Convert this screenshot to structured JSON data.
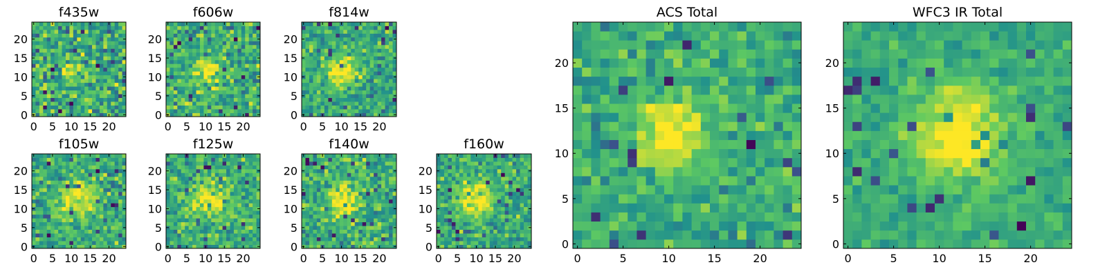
{
  "colormap": [
    "#440154",
    "#3b528b",
    "#21918c",
    "#5ec962",
    "#fde725"
  ],
  "chart_data": [
    {
      "type": "heatmap",
      "title": "f435w",
      "grid_size": 25,
      "xlim": [
        -0.5,
        24.5
      ],
      "ylim": [
        -0.5,
        24.5
      ],
      "xticks": [
        0,
        5,
        10,
        15,
        20
      ],
      "yticks": [
        0,
        5,
        10,
        15,
        20
      ],
      "source_center": [
        9.5,
        11.5
      ],
      "source_sigma": 2.3,
      "source_strength": 0.25,
      "noise_level": 0.45,
      "grid": false
    },
    {
      "type": "heatmap",
      "title": "f606w",
      "grid_size": 25,
      "xlim": [
        -0.5,
        24.5
      ],
      "ylim": [
        -0.5,
        24.5
      ],
      "xticks": [
        0,
        5,
        10,
        15,
        20
      ],
      "yticks": [
        0,
        5,
        10,
        15,
        20
      ],
      "source_center": [
        10,
        11.5
      ],
      "source_sigma": 2.6,
      "source_strength": 0.35,
      "noise_level": 0.4,
      "grid": false
    },
    {
      "type": "heatmap",
      "title": "f814w",
      "grid_size": 25,
      "xlim": [
        -0.5,
        24.5
      ],
      "ylim": [
        -0.5,
        24.5
      ],
      "xticks": [
        0,
        5,
        10,
        15,
        20
      ],
      "yticks": [
        0,
        5,
        10,
        15,
        20
      ],
      "source_center": [
        10,
        11.5
      ],
      "source_sigma": 2.6,
      "source_strength": 0.45,
      "noise_level": 0.35,
      "grid": false
    },
    {
      "type": "heatmap",
      "title": "f105w",
      "grid_size": 25,
      "xlim": [
        -0.5,
        24.5
      ],
      "ylim": [
        -0.5,
        24.5
      ],
      "xticks": [
        0,
        5,
        10,
        15,
        20
      ],
      "yticks": [
        0,
        5,
        10,
        15,
        20
      ],
      "source_center": [
        11.5,
        12.5
      ],
      "source_sigma": 3.5,
      "source_strength": 0.4,
      "noise_level": 0.35,
      "grid": false
    },
    {
      "type": "heatmap",
      "title": "f125w",
      "grid_size": 25,
      "xlim": [
        -0.5,
        24.5
      ],
      "ylim": [
        -0.5,
        24.5
      ],
      "xticks": [
        0,
        5,
        10,
        15,
        20
      ],
      "yticks": [
        0,
        5,
        10,
        15,
        20
      ],
      "source_center": [
        11,
        12.5
      ],
      "source_sigma": 3.5,
      "source_strength": 0.4,
      "noise_level": 0.35,
      "grid": false
    },
    {
      "type": "heatmap",
      "title": "f140w",
      "grid_size": 25,
      "xlim": [
        -0.5,
        24.5
      ],
      "ylim": [
        -0.5,
        24.5
      ],
      "xticks": [
        0,
        5,
        10,
        15,
        20
      ],
      "yticks": [
        0,
        5,
        10,
        15,
        20
      ],
      "source_center": [
        10.5,
        12
      ],
      "source_sigma": 3.0,
      "source_strength": 0.4,
      "noise_level": 0.38,
      "grid": false
    },
    {
      "type": "heatmap",
      "title": "f160w",
      "grid_size": 25,
      "xlim": [
        -0.5,
        24.5
      ],
      "ylim": [
        -0.5,
        24.5
      ],
      "xticks": [
        0,
        5,
        10,
        15,
        20
      ],
      "yticks": [
        0,
        5,
        10,
        15,
        20
      ],
      "source_center": [
        10,
        12.5
      ],
      "source_sigma": 3.0,
      "source_strength": 0.45,
      "noise_level": 0.35,
      "grid": false
    },
    {
      "type": "heatmap",
      "title": "ACS Total",
      "grid_size": 25,
      "xlim": [
        -0.5,
        24.5
      ],
      "ylim": [
        -0.5,
        24.5
      ],
      "xticks": [
        0,
        5,
        10,
        15,
        20
      ],
      "yticks": [
        0,
        5,
        10,
        15,
        20
      ],
      "source_center": [
        10,
        12
      ],
      "source_sigma": 2.4,
      "source_strength": 0.5,
      "noise_level": 0.3,
      "grid": false
    },
    {
      "type": "heatmap",
      "title": "WFC3 IR Total",
      "grid_size": 25,
      "xlim": [
        -0.5,
        24.5
      ],
      "ylim": [
        -0.5,
        24.5
      ],
      "xticks": [
        0,
        5,
        10,
        15,
        20
      ],
      "yticks": [
        0,
        5,
        10,
        15,
        20
      ],
      "source_center": [
        12,
        12
      ],
      "source_sigma": 3.5,
      "source_strength": 0.45,
      "noise_level": 0.2,
      "grid": false
    }
  ]
}
